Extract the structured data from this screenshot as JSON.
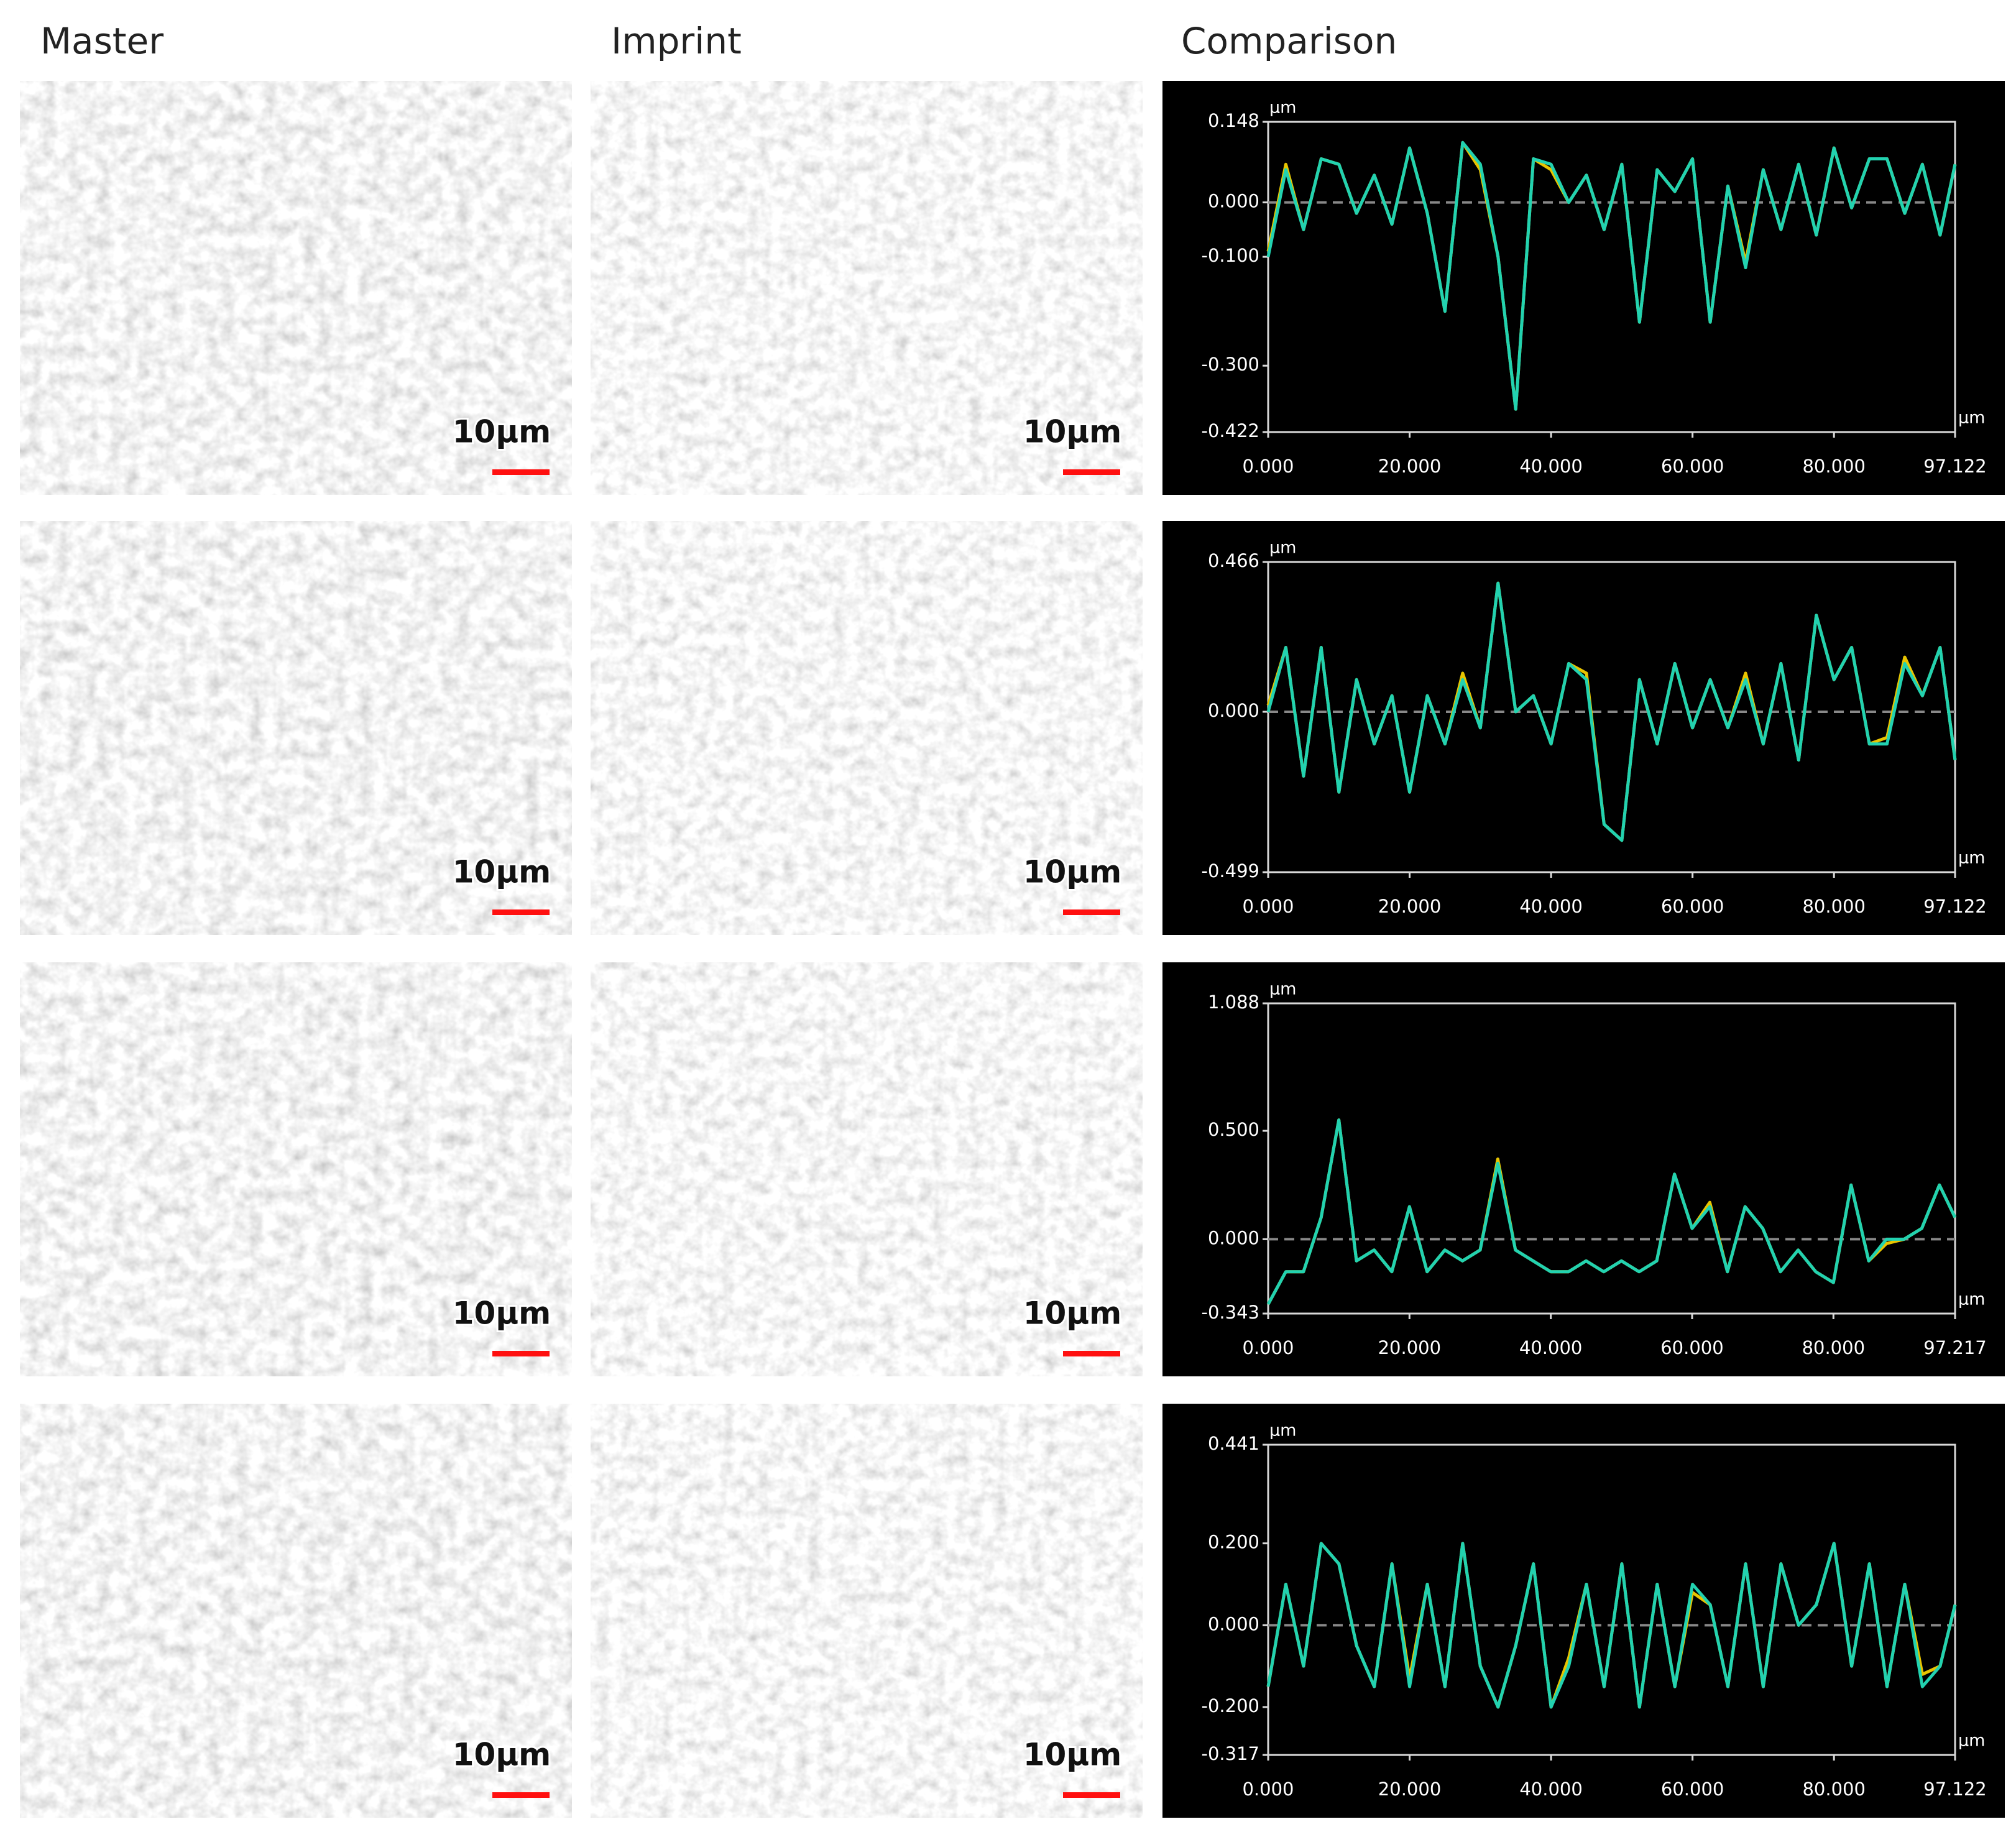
{
  "headers": [
    "Master",
    "Imprint",
    "Comparison"
  ],
  "scale_label": "10µm",
  "chart_data": [
    {
      "type": "line",
      "y_unit": "µm",
      "x_unit": "µm",
      "zero_line": true,
      "xlim": [
        0,
        97.122
      ],
      "ylim": [
        -0.422,
        0.148
      ],
      "xticks": [
        {
          "value": 0,
          "label": "0.000"
        },
        {
          "value": 20,
          "label": "20.000"
        },
        {
          "value": 40,
          "label": "40.000"
        },
        {
          "value": 60,
          "label": "60.000"
        },
        {
          "value": 80,
          "label": "80.000"
        },
        97.122
      ],
      "yticks": [
        0.148,
        {
          "value": 0,
          "label": "0.000"
        },
        {
          "value": -0.1,
          "label": "-0.100"
        },
        {
          "value": -0.3,
          "label": "-0.300"
        },
        -0.422
      ],
      "x": [
        0,
        2.5,
        5,
        7.5,
        10,
        12.5,
        15,
        17.5,
        20,
        22.5,
        25,
        27.5,
        30,
        32.5,
        35,
        37.5,
        40,
        42.5,
        45,
        47.5,
        50,
        52.5,
        55,
        57.5,
        60,
        62.5,
        65,
        67.5,
        70,
        72.5,
        75,
        77.5,
        80,
        82.5,
        85,
        87.5,
        90,
        92.5,
        95,
        97.122
      ],
      "series": [
        {
          "color": "#e8c400",
          "values": [
            -0.09,
            0.07,
            -0.05,
            0.08,
            0.07,
            -0.02,
            0.05,
            -0.04,
            0.1,
            -0.02,
            -0.2,
            0.11,
            0.06,
            -0.1,
            -0.38,
            0.08,
            0.06,
            0.0,
            0.05,
            -0.05,
            0.07,
            -0.22,
            0.06,
            0.02,
            0.08,
            -0.22,
            0.03,
            -0.11,
            0.06,
            -0.05,
            0.07,
            -0.06,
            0.1,
            -0.01,
            0.08,
            0.08,
            -0.02,
            0.07,
            -0.06,
            0.07
          ]
        },
        {
          "color": "#22d2b0",
          "values": [
            -0.1,
            0.06,
            -0.05,
            0.08,
            0.07,
            -0.02,
            0.05,
            -0.04,
            0.1,
            -0.02,
            -0.2,
            0.11,
            0.07,
            -0.1,
            -0.38,
            0.08,
            0.07,
            0.0,
            0.05,
            -0.05,
            0.07,
            -0.22,
            0.06,
            0.02,
            0.08,
            -0.22,
            0.03,
            -0.12,
            0.06,
            -0.05,
            0.07,
            -0.06,
            0.1,
            -0.01,
            0.08,
            0.08,
            -0.02,
            0.07,
            -0.06,
            0.07
          ]
        }
      ]
    },
    {
      "type": "line",
      "y_unit": "µm",
      "x_unit": "µm",
      "zero_line": true,
      "xlim": [
        0,
        97.122
      ],
      "ylim": [
        -0.499,
        0.466
      ],
      "xticks": [
        {
          "value": 0,
          "label": "0.000"
        },
        {
          "value": 20,
          "label": "20.000"
        },
        {
          "value": 40,
          "label": "40.000"
        },
        {
          "value": 60,
          "label": "60.000"
        },
        {
          "value": 80,
          "label": "80.000"
        },
        97.122
      ],
      "yticks": [
        0.466,
        {
          "value": 0,
          "label": "0.000"
        },
        -0.499
      ],
      "x": [
        0,
        2.5,
        5,
        7.5,
        10,
        12.5,
        15,
        17.5,
        20,
        22.5,
        25,
        27.5,
        30,
        32.5,
        35,
        37.5,
        40,
        42.5,
        45,
        47.5,
        50,
        52.5,
        55,
        57.5,
        60,
        62.5,
        65,
        67.5,
        70,
        72.5,
        75,
        77.5,
        80,
        82.5,
        85,
        87.5,
        90,
        92.5,
        95,
        97.122
      ],
      "series": [
        {
          "color": "#e8c400",
          "values": [
            0.02,
            0.2,
            -0.2,
            0.2,
            -0.25,
            0.1,
            -0.1,
            0.05,
            -0.25,
            0.05,
            -0.1,
            0.12,
            -0.05,
            0.4,
            0.0,
            0.05,
            -0.1,
            0.15,
            0.12,
            -0.35,
            -0.4,
            0.1,
            -0.1,
            0.15,
            -0.05,
            0.1,
            -0.05,
            0.12,
            -0.1,
            0.15,
            -0.15,
            0.3,
            0.1,
            0.2,
            -0.1,
            -0.08,
            0.17,
            0.05,
            0.2,
            -0.15
          ]
        },
        {
          "color": "#22d2b0",
          "values": [
            0.0,
            0.2,
            -0.2,
            0.2,
            -0.25,
            0.1,
            -0.1,
            0.05,
            -0.25,
            0.05,
            -0.1,
            0.1,
            -0.05,
            0.4,
            0.0,
            0.05,
            -0.1,
            0.15,
            0.1,
            -0.35,
            -0.4,
            0.1,
            -0.1,
            0.15,
            -0.05,
            0.1,
            -0.05,
            0.1,
            -0.1,
            0.15,
            -0.15,
            0.3,
            0.1,
            0.2,
            -0.1,
            -0.1,
            0.15,
            0.05,
            0.2,
            -0.15
          ]
        }
      ]
    },
    {
      "type": "line",
      "y_unit": "µm",
      "x_unit": "µm",
      "zero_line": true,
      "xlim": [
        0,
        97.217
      ],
      "ylim": [
        -0.343,
        1.088
      ],
      "xticks": [
        {
          "value": 0,
          "label": "0.000"
        },
        {
          "value": 20,
          "label": "20.000"
        },
        {
          "value": 40,
          "label": "40.000"
        },
        {
          "value": 60,
          "label": "60.000"
        },
        {
          "value": 80,
          "label": "80.000"
        },
        97.217
      ],
      "yticks": [
        1.088,
        {
          "value": 0.5,
          "label": "0.500"
        },
        {
          "value": 0,
          "label": "0.000"
        },
        -0.343
      ],
      "x": [
        0,
        2.5,
        5,
        7.5,
        10,
        12.5,
        15,
        17.5,
        20,
        22.5,
        25,
        27.5,
        30,
        32.5,
        35,
        37.5,
        40,
        42.5,
        45,
        47.5,
        50,
        52.5,
        55,
        57.5,
        60,
        62.5,
        65,
        67.5,
        70,
        72.5,
        75,
        77.5,
        80,
        82.5,
        85,
        87.5,
        90,
        92.5,
        95,
        97.217
      ],
      "series": [
        {
          "color": "#e8c400",
          "values": [
            -0.3,
            -0.15,
            -0.15,
            0.1,
            0.55,
            -0.1,
            -0.05,
            -0.15,
            0.15,
            -0.15,
            -0.05,
            -0.1,
            -0.05,
            0.37,
            -0.05,
            -0.1,
            -0.15,
            -0.15,
            -0.1,
            -0.15,
            -0.1,
            -0.15,
            -0.1,
            0.3,
            0.05,
            0.17,
            -0.15,
            0.15,
            0.05,
            -0.15,
            -0.05,
            -0.15,
            -0.2,
            0.25,
            -0.1,
            -0.02,
            0.0,
            0.05,
            0.25,
            0.1
          ]
        },
        {
          "color": "#22d2b0",
          "values": [
            -0.3,
            -0.15,
            -0.15,
            0.1,
            0.55,
            -0.1,
            -0.05,
            -0.15,
            0.15,
            -0.15,
            -0.05,
            -0.1,
            -0.05,
            0.35,
            -0.05,
            -0.1,
            -0.15,
            -0.15,
            -0.1,
            -0.15,
            -0.1,
            -0.15,
            -0.1,
            0.3,
            0.05,
            0.15,
            -0.15,
            0.15,
            0.05,
            -0.15,
            -0.05,
            -0.15,
            -0.2,
            0.25,
            -0.1,
            0.0,
            0.0,
            0.05,
            0.25,
            0.1
          ]
        }
      ]
    },
    {
      "type": "line",
      "y_unit": "µm",
      "x_unit": "µm",
      "zero_line": true,
      "xlim": [
        0,
        97.122
      ],
      "ylim": [
        -0.317,
        0.441
      ],
      "xticks": [
        {
          "value": 0,
          "label": "0.000"
        },
        {
          "value": 20,
          "label": "20.000"
        },
        {
          "value": 40,
          "label": "40.000"
        },
        {
          "value": 60,
          "label": "60.000"
        },
        {
          "value": 80,
          "label": "80.000"
        },
        97.122
      ],
      "yticks": [
        0.441,
        {
          "value": 0.2,
          "label": "0.200"
        },
        {
          "value": 0,
          "label": "0.000"
        },
        {
          "value": -0.2,
          "label": "-0.200"
        },
        -0.317
      ],
      "x": [
        0,
        2.5,
        5,
        7.5,
        10,
        12.5,
        15,
        17.5,
        20,
        22.5,
        25,
        27.5,
        30,
        32.5,
        35,
        37.5,
        40,
        42.5,
        45,
        47.5,
        50,
        52.5,
        55,
        57.5,
        60,
        62.5,
        65,
        67.5,
        70,
        72.5,
        75,
        77.5,
        80,
        82.5,
        85,
        87.5,
        90,
        92.5,
        95,
        97.122
      ],
      "series": [
        {
          "color": "#e8c400",
          "values": [
            -0.15,
            0.1,
            -0.1,
            0.2,
            0.15,
            -0.05,
            -0.15,
            0.15,
            -0.13,
            0.1,
            -0.15,
            0.2,
            -0.1,
            -0.2,
            -0.05,
            0.15,
            -0.2,
            -0.08,
            0.1,
            -0.15,
            0.15,
            -0.2,
            0.1,
            -0.15,
            0.08,
            0.05,
            -0.15,
            0.15,
            -0.15,
            0.15,
            0.0,
            0.05,
            0.2,
            -0.1,
            0.15,
            -0.15,
            0.1,
            -0.12,
            -0.1,
            0.05
          ]
        },
        {
          "color": "#22d2b0",
          "values": [
            -0.15,
            0.1,
            -0.1,
            0.2,
            0.15,
            -0.05,
            -0.15,
            0.15,
            -0.15,
            0.1,
            -0.15,
            0.2,
            -0.1,
            -0.2,
            -0.05,
            0.15,
            -0.2,
            -0.1,
            0.1,
            -0.15,
            0.15,
            -0.2,
            0.1,
            -0.15,
            0.1,
            0.05,
            -0.15,
            0.15,
            -0.15,
            0.15,
            0.0,
            0.05,
            0.2,
            -0.1,
            0.15,
            -0.15,
            0.1,
            -0.15,
            -0.1,
            0.05
          ]
        }
      ]
    }
  ]
}
